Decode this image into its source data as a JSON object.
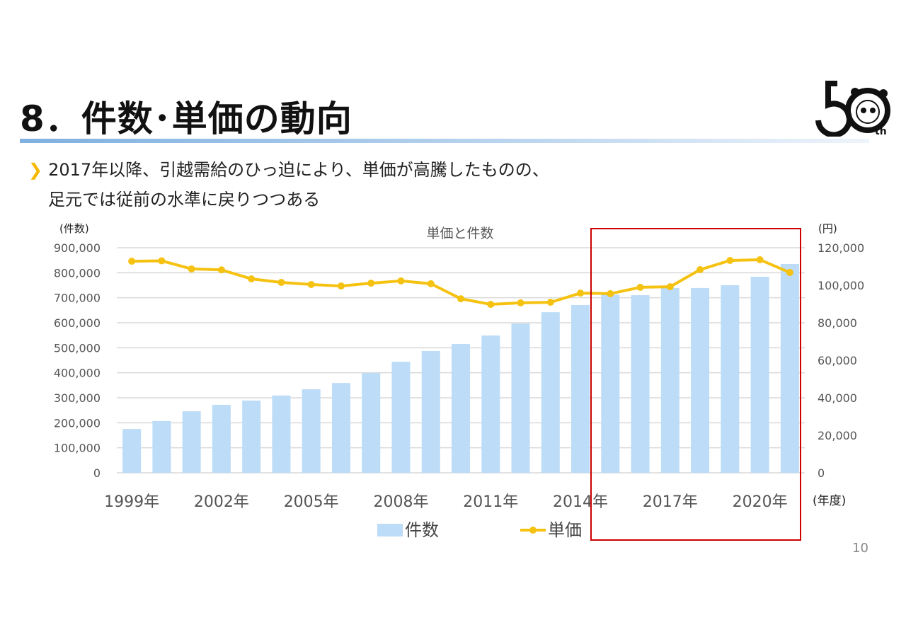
{
  "slide": {
    "title": "8．件数･単価の動向",
    "bullet_line1": "2017年以降、引越需給のひっ迫により、単価が高騰したものの、",
    "bullet_line2": "足元では従前の水準に戻りつつある",
    "page_number": "10",
    "logo_text": "50th",
    "bullet_icon": "chevron-right"
  },
  "chart_data": {
    "type": "bar+line",
    "title": "単価と件数",
    "ylabel_left": "(件数)",
    "ylabel_right": "(円)",
    "xlabel": "(年度)",
    "ylim_left": [
      0,
      900000
    ],
    "ylim_right": [
      0,
      120000
    ],
    "yticks_left": [
      "900,000",
      "800,000",
      "700,000",
      "600,000",
      "500,000",
      "400,000",
      "300,000",
      "200,000",
      "100,000",
      "0"
    ],
    "yticks_right": [
      "120,000",
      "100,000",
      "80,000",
      "60,000",
      "40,000",
      "20,000",
      "0"
    ],
    "x": [
      1999,
      2000,
      2001,
      2002,
      2003,
      2004,
      2005,
      2006,
      2007,
      2008,
      2009,
      2010,
      2011,
      2012,
      2013,
      2014,
      2015,
      2016,
      2017,
      2018,
      2019,
      2020,
      2021
    ],
    "xtick_labels": [
      "1999年",
      "2002年",
      "2005年",
      "2008年",
      "2011年",
      "2014年",
      "2017年",
      "2020年"
    ],
    "grid": true,
    "legend": "bottom",
    "series": [
      {
        "name": "件数",
        "type": "bar",
        "axis": "left",
        "color": "#bcdcf8",
        "values": [
          175000,
          207000,
          246000,
          272000,
          289000,
          309000,
          334000,
          359000,
          399000,
          444000,
          487000,
          515000,
          549000,
          597000,
          642000,
          671000,
          712000,
          710000,
          739000,
          739000,
          750000,
          784000,
          835000
        ]
      },
      {
        "name": "単価",
        "type": "line",
        "axis": "right",
        "color": "#f5c211",
        "values": [
          112800,
          113000,
          108700,
          108200,
          103400,
          101500,
          100400,
          99600,
          101100,
          102300,
          100800,
          92800,
          89800,
          90600,
          90900,
          95800,
          95500,
          98900,
          99200,
          108300,
          113200,
          113600,
          106800
        ]
      }
    ],
    "highlight": {
      "from": 2015,
      "to": 2021,
      "color": "#cc0000"
    }
  }
}
